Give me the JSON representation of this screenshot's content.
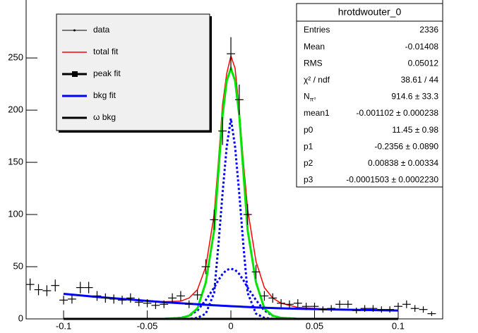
{
  "chart_data": {
    "type": "fit",
    "xlim": [
      -0.1224,
      0.1266
    ],
    "ylim": [
      0,
      292
    ],
    "xticks": [
      -0.1,
      -0.05,
      0,
      0.05,
      0.1
    ],
    "yticks": [
      0,
      50,
      100,
      150,
      200,
      250
    ],
    "data": {
      "name": "data",
      "color": "#000000",
      "bin_width": 0.005,
      "x": [
        -0.12,
        -0.115,
        -0.11,
        -0.105,
        -0.1,
        -0.095,
        -0.09,
        -0.085,
        -0.08,
        -0.075,
        -0.07,
        -0.065,
        -0.06,
        -0.055,
        -0.05,
        -0.045,
        -0.04,
        -0.035,
        -0.03,
        -0.025,
        -0.02,
        -0.015,
        -0.01,
        -0.005,
        0,
        0.005,
        0.01,
        0.015,
        0.02,
        0.025,
        0.03,
        0.035,
        0.04,
        0.045,
        0.05,
        0.055,
        0.06,
        0.065,
        0.07,
        0.075,
        0.08,
        0.085,
        0.09,
        0.095,
        0.1,
        0.105,
        0.11,
        0.115,
        0.12
      ],
      "values": [
        33,
        28,
        27,
        32,
        18,
        19,
        30,
        30,
        22,
        20,
        19,
        18,
        20,
        16,
        15,
        13,
        14,
        20,
        22,
        14,
        23,
        50,
        95,
        180,
        254,
        210,
        100,
        45,
        22,
        20,
        15,
        14,
        15,
        12,
        12,
        9,
        10,
        14,
        14,
        8,
        10,
        10,
        9,
        9,
        12,
        14,
        10,
        9,
        5
      ],
      "errors": [
        5.7,
        5.3,
        5.2,
        5.7,
        4.2,
        4.4,
        5.5,
        5.5,
        4.7,
        4.5,
        4.4,
        4.2,
        4.5,
        4,
        3.9,
        3.6,
        3.7,
        4.5,
        4.7,
        3.7,
        4.8,
        7.1,
        9.7,
        13.4,
        15.9,
        14.5,
        10,
        6.7,
        4.7,
        4.5,
        3.9,
        3.7,
        3.9,
        3.5,
        3.5,
        3,
        3.2,
        3.7,
        3.7,
        2.8,
        3.2,
        3.2,
        3,
        3,
        3.5,
        3.7,
        3.2,
        3,
        2.2
      ]
    },
    "fit_x": [
      -0.1,
      -0.08,
      -0.06,
      -0.04,
      -0.03,
      -0.025,
      -0.02,
      -0.015,
      -0.01,
      -0.0075,
      -0.005,
      -0.0025,
      0,
      0.0025,
      0.005,
      0.0075,
      0.01,
      0.015,
      0.02,
      0.025,
      0.03,
      0.04,
      0.06,
      0.08,
      0.1
    ],
    "series": [
      {
        "name": "total fit",
        "color": "#ff0000",
        "width": 1.5,
        "values": [
          24,
          21,
          18.5,
          16.5,
          17,
          20,
          28,
          50,
          100,
          150,
          205,
          235,
          252,
          240,
          200,
          150,
          105,
          55,
          30,
          20,
          15,
          11,
          9,
          8.5,
          8
        ]
      },
      {
        "name": "peak fit",
        "color": "#00e600",
        "legend_color": "#000000",
        "width": 3,
        "values": [
          0,
          0,
          0,
          0,
          1,
          3,
          10,
          35,
          85,
          140,
          195,
          228,
          240,
          228,
          195,
          140,
          85,
          35,
          10,
          3,
          1,
          0,
          0,
          0,
          0
        ]
      },
      {
        "name": "bkg fit",
        "color": "#0000ff",
        "width": 3,
        "values": [
          24,
          21,
          18.5,
          16,
          15,
          14.5,
          14,
          13.5,
          13,
          12.8,
          12.6,
          12.4,
          12.2,
          12,
          11.8,
          11.6,
          11.4,
          11,
          10.7,
          10.4,
          10.1,
          9.7,
          9,
          8.5,
          8
        ]
      },
      {
        "name": "ω bkg",
        "color": "#000000",
        "width": 3,
        "values": [
          0,
          0,
          0,
          0,
          0,
          0,
          0,
          0,
          0,
          0,
          0,
          0,
          0,
          0,
          0,
          0,
          0,
          0,
          0,
          0,
          0,
          0,
          0,
          0,
          0
        ]
      }
    ],
    "components": [
      {
        "color": "#0000ff",
        "dash": true,
        "values": [
          0,
          0,
          0,
          0,
          0,
          0,
          1,
          5,
          25,
          70,
          120,
          165,
          192,
          165,
          120,
          70,
          25,
          5,
          1,
          0,
          0,
          0,
          0,
          0,
          0
        ]
      },
      {
        "color": "#0000ff",
        "dash": true,
        "values": [
          0,
          0,
          0,
          0,
          1,
          3,
          8,
          18,
          30,
          37,
          43,
          47,
          48,
          47,
          43,
          37,
          30,
          18,
          8,
          3,
          1,
          0,
          0,
          0,
          0
        ]
      }
    ],
    "stats": {
      "title": "hrotdwouter_0",
      "rows": [
        [
          "Entries",
          "2336"
        ],
        [
          "Mean",
          "-0.01408"
        ],
        [
          "RMS",
          "0.05012"
        ],
        [
          "χ² / ndf",
          "38.61 / 44"
        ],
        [
          {
            "main": "N",
            "sub": "π⁰"
          },
          "914.6 ± 33.3"
        ],
        [
          "mean1",
          "-0.001102 ± 0.000238"
        ],
        [
          "p0",
          "11.45 ± 0.98"
        ],
        [
          "p1",
          "-0.2356 ± 0.0890"
        ],
        [
          "p2",
          "0.00838 ± 0.00334"
        ],
        [
          "p3",
          "-0.0001503 ± 0.0002230"
        ]
      ]
    }
  }
}
